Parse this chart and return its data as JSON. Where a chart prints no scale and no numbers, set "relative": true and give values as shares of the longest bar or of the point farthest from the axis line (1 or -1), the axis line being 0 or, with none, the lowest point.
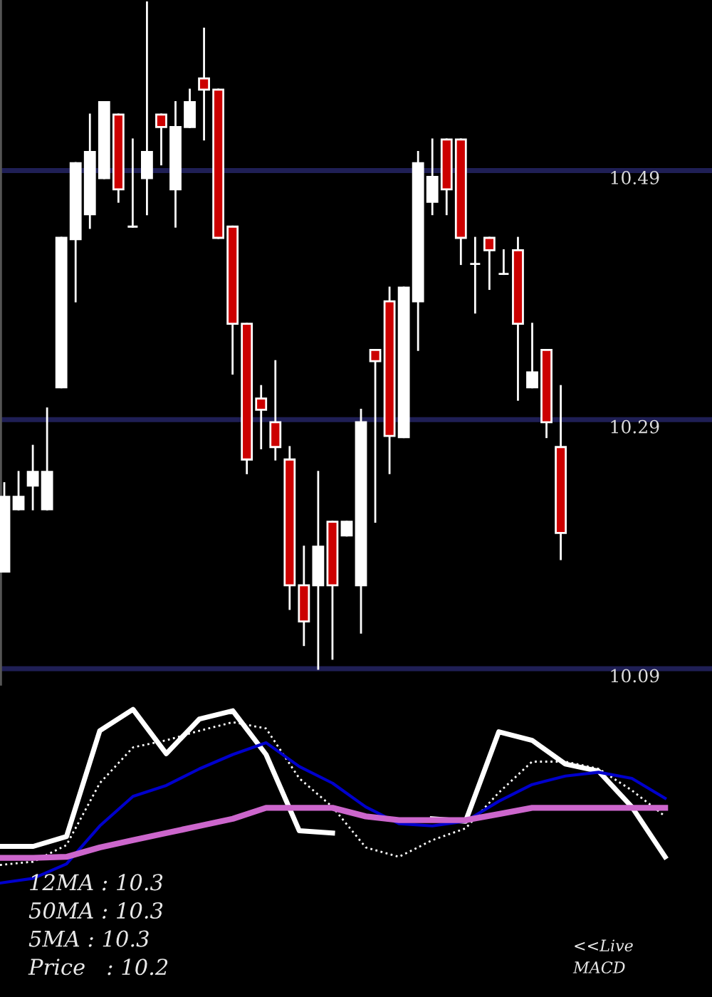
{
  "chart_data": [
    {
      "type": "candlestick",
      "categories": [
        null,
        null,
        null,
        null,
        null,
        null,
        null,
        null,
        null,
        null,
        null,
        null,
        null,
        null,
        null,
        null,
        null,
        null,
        null,
        null,
        null,
        null,
        null,
        null,
        null,
        null,
        null,
        null,
        null,
        null,
        null,
        null,
        null,
        null,
        null,
        null,
        null,
        null,
        null,
        null
      ],
      "ohlc": [
        [
          10.168,
          10.239,
          10.168,
          10.228
        ],
        [
          10.218,
          10.248,
          10.218,
          10.228
        ],
        [
          10.237,
          10.269,
          10.218,
          10.248
        ],
        [
          10.218,
          10.299,
          10.218,
          10.248
        ],
        [
          10.316,
          10.436,
          10.316,
          10.436
        ],
        [
          10.435,
          10.496,
          10.385,
          10.496
        ],
        [
          10.455,
          10.535,
          10.444,
          10.505
        ],
        [
          10.484,
          10.545,
          10.484,
          10.545
        ],
        [
          10.535,
          10.535,
          10.465,
          10.475
        ],
        [
          10.445,
          10.515,
          10.445,
          10.445
        ],
        [
          10.484,
          10.625,
          10.455,
          10.505
        ],
        [
          10.535,
          10.535,
          10.495,
          10.525
        ],
        [
          10.475,
          10.545,
          10.445,
          10.525
        ],
        [
          10.525,
          10.555,
          10.525,
          10.545
        ],
        [
          10.564,
          10.604,
          10.515,
          10.555
        ],
        [
          10.555,
          10.555,
          10.436,
          10.436
        ],
        [
          10.445,
          10.445,
          10.327,
          10.367
        ],
        [
          10.367,
          10.367,
          10.247,
          10.258
        ],
        [
          10.307,
          10.317,
          10.267,
          10.298
        ],
        [
          10.288,
          10.337,
          10.258,
          10.268
        ],
        [
          10.258,
          10.268,
          10.138,
          10.157
        ],
        [
          10.157,
          10.188,
          10.109,
          10.128
        ],
        [
          10.157,
          10.248,
          10.09,
          10.188
        ],
        [
          10.208,
          10.208,
          10.098,
          10.157
        ],
        [
          10.197,
          10.208,
          10.197,
          10.208
        ],
        [
          10.157,
          10.298,
          10.119,
          10.288
        ],
        [
          10.346,
          10.346,
          10.208,
          10.337
        ],
        [
          10.385,
          10.396,
          10.247,
          10.277
        ],
        [
          10.276,
          10.396,
          10.276,
          10.396
        ],
        [
          10.385,
          10.505,
          10.346,
          10.496
        ],
        [
          10.465,
          10.515,
          10.455,
          10.485
        ],
        [
          10.515,
          10.515,
          10.455,
          10.475
        ],
        [
          10.515,
          10.515,
          10.415,
          10.436
        ],
        [
          10.415,
          10.436,
          10.376,
          10.415
        ],
        [
          10.436,
          10.436,
          10.395,
          10.426
        ],
        [
          10.407,
          10.426,
          10.407,
          10.407
        ],
        [
          10.426,
          10.436,
          10.306,
          10.367
        ],
        [
          10.316,
          10.367,
          10.316,
          10.328
        ],
        [
          10.346,
          10.346,
          10.276,
          10.288
        ],
        [
          10.268,
          10.317,
          10.178,
          10.199
        ]
      ],
      "colors": [
        "#ffffff",
        "#ffffff",
        "#ffffff",
        "#ffffff",
        "#ffffff",
        "#ffffff",
        "#ffffff",
        "#ffffff",
        "#cc0000",
        "#ffffff",
        "#ffffff",
        "#cc0000",
        "#ffffff",
        "#ffffff",
        "#cc0000",
        "#cc0000",
        "#cc0000",
        "#cc0000",
        "#cc0000",
        "#cc0000",
        "#cc0000",
        "#cc0000",
        "#ffffff",
        "#cc0000",
        "#ffffff",
        "#ffffff",
        "#cc0000",
        "#cc0000",
        "#ffffff",
        "#ffffff",
        "#ffffff",
        "#cc0000",
        "#cc0000",
        "#ffffff",
        "#cc0000",
        "#ffffff",
        "#cc0000",
        "#ffffff",
        "#cc0000",
        "#cc0000"
      ],
      "ylim": [
        10.078,
        10.627
      ],
      "yticks": [
        10.09,
        10.29,
        10.49
      ],
      "grid": "y",
      "tick_labels": "y"
    },
    {
      "type": "line",
      "relative": true,
      "tick_labels": false,
      "legend": false,
      "categories": [
        null,
        null,
        null,
        null,
        null,
        null,
        null,
        null,
        null,
        null,
        null,
        null,
        null,
        null,
        null,
        null,
        null,
        null,
        null,
        null,
        null
      ],
      "series": [
        {
          "color": "#ffffff",
          "line_style": "solid",
          "values": [
            0.211,
            0.211,
            0.268,
            0.877,
            1.0,
            0.745,
            0.945,
            0.992,
            0.74,
            0.301,
            0.288,
            null,
            null,
            0.37,
            0.356,
            0.871,
            0.822,
            0.685,
            0.644,
            0.438,
            0.151
          ]
        },
        {
          "color": "#ffffff",
          "line_style": "dotted",
          "values": [
            0.104,
            0.123,
            0.219,
            0.575,
            0.781,
            0.822,
            0.877,
            0.926,
            0.89,
            0.603,
            0.438,
            0.205,
            0.151,
            0.247,
            0.315,
            0.521,
            0.699,
            0.699,
            0.658,
            0.534,
            0.384
          ]
        },
        {
          "color": "#0000cc",
          "line_style": "solid",
          "values": [
            0.0,
            0.027,
            0.11,
            0.329,
            0.499,
            0.562,
            0.658,
            0.74,
            0.808,
            0.671,
            0.575,
            0.438,
            0.342,
            0.329,
            0.356,
            0.471,
            0.567,
            0.616,
            0.638,
            0.603,
            0.488
          ]
        },
        {
          "color": "#cc66cc",
          "line_style": "solid",
          "values": [
            0.145,
            0.145,
            0.151,
            0.205,
            0.247,
            0.288,
            0.329,
            0.37,
            0.433,
            0.433,
            0.433,
            0.384,
            0.362,
            0.362,
            0.362,
            0.397,
            0.433,
            0.433,
            0.433,
            0.433,
            0.433
          ]
        }
      ],
      "annotations": [
        "12MA : 10.3",
        "50MA : 10.3",
        "5MA : 10.3",
        "Price   : 10.2",
        "<<Live",
        "MACD"
      ]
    }
  ]
}
